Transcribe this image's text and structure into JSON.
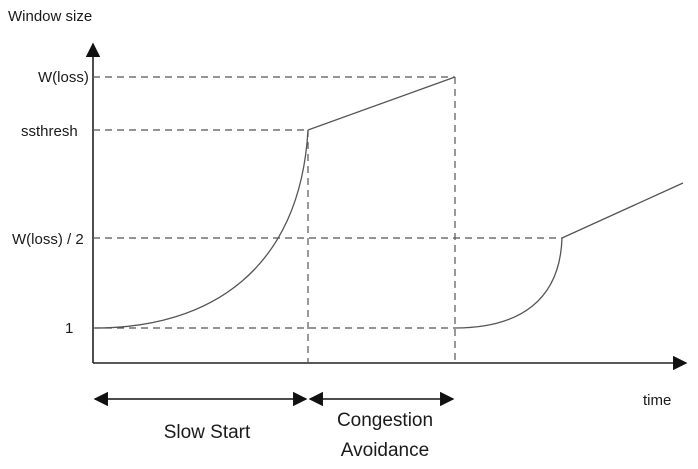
{
  "axes": {
    "y_title": "Window size",
    "x_title": "time"
  },
  "y_levels": {
    "w_loss": "W(loss)",
    "ssthresh": "ssthresh",
    "w_loss_half": "W(loss) / 2",
    "one": "1"
  },
  "phases": {
    "slow_start": "Slow Start",
    "congestion_avoidance_line1": "Congestion",
    "congestion_avoidance_line2": "Avoidance"
  }
}
